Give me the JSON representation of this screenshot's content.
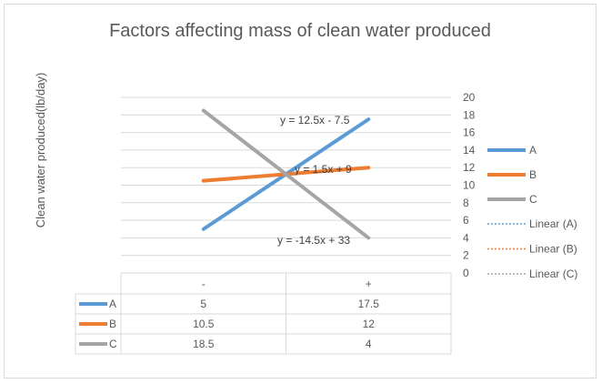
{
  "chart_data": {
    "type": "line",
    "title": "Factors affecting mass of clean water produced",
    "ylabel": "Clean water produced(lb/day)",
    "xlabel": "",
    "categories": [
      "-",
      "+"
    ],
    "ylim": [
      0,
      20
    ],
    "yticks": [
      "0",
      "2",
      "4",
      "6",
      "8",
      "10",
      "12",
      "14",
      "16",
      "18",
      "20"
    ],
    "y_axis_side": "right",
    "grid": true,
    "legend_position": "right",
    "data_table": true,
    "series": [
      {
        "name": "A",
        "values": [
          5,
          17.5
        ],
        "display": [
          "5",
          "17.5"
        ],
        "color": "#5b9bd5",
        "trendline": {
          "name": "Linear (A)",
          "equation": "y = 12.5x - 7.5"
        }
      },
      {
        "name": "B",
        "values": [
          10.5,
          12
        ],
        "display": [
          "10.5",
          "12"
        ],
        "color": "#ed7d31",
        "trendline": {
          "name": "Linear (B)",
          "equation": "y = 1.5x + 9"
        }
      },
      {
        "name": "C",
        "values": [
          18.5,
          4
        ],
        "display": [
          "18.5",
          "4"
        ],
        "color": "#a5a5a5",
        "trendline": {
          "name": "Linear (C)",
          "equation": "y = -14.5x + 33"
        }
      }
    ]
  }
}
